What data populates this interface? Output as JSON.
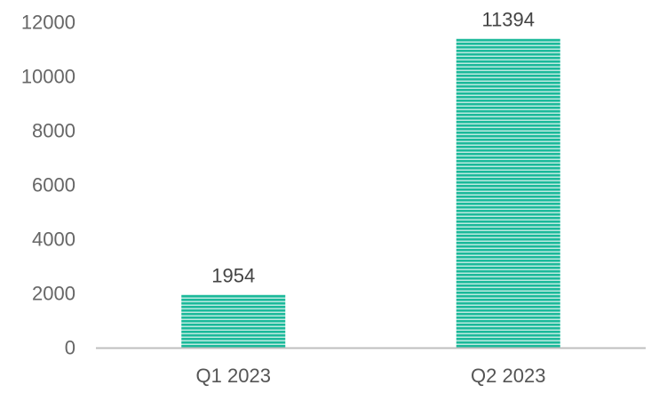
{
  "chart_data": {
    "type": "bar",
    "categories": [
      "Q1 2023",
      "Q2 2023"
    ],
    "values": [
      1954,
      11394
    ],
    "data_labels": [
      "1954",
      "11394"
    ],
    "title": "",
    "xlabel": "",
    "ylabel": "",
    "ylim": [
      0,
      12000
    ],
    "yticks": [
      0,
      2000,
      4000,
      6000,
      8000,
      10000,
      12000
    ],
    "ytick_labels": [
      "0",
      "2000",
      "4000",
      "6000",
      "8000",
      "10000",
      "12000"
    ],
    "grid": false,
    "legend": "none",
    "bar_color": "#1bb99a",
    "bar_stripe_color": "#e6f7f3",
    "axis_color": "#bfbfbf"
  }
}
